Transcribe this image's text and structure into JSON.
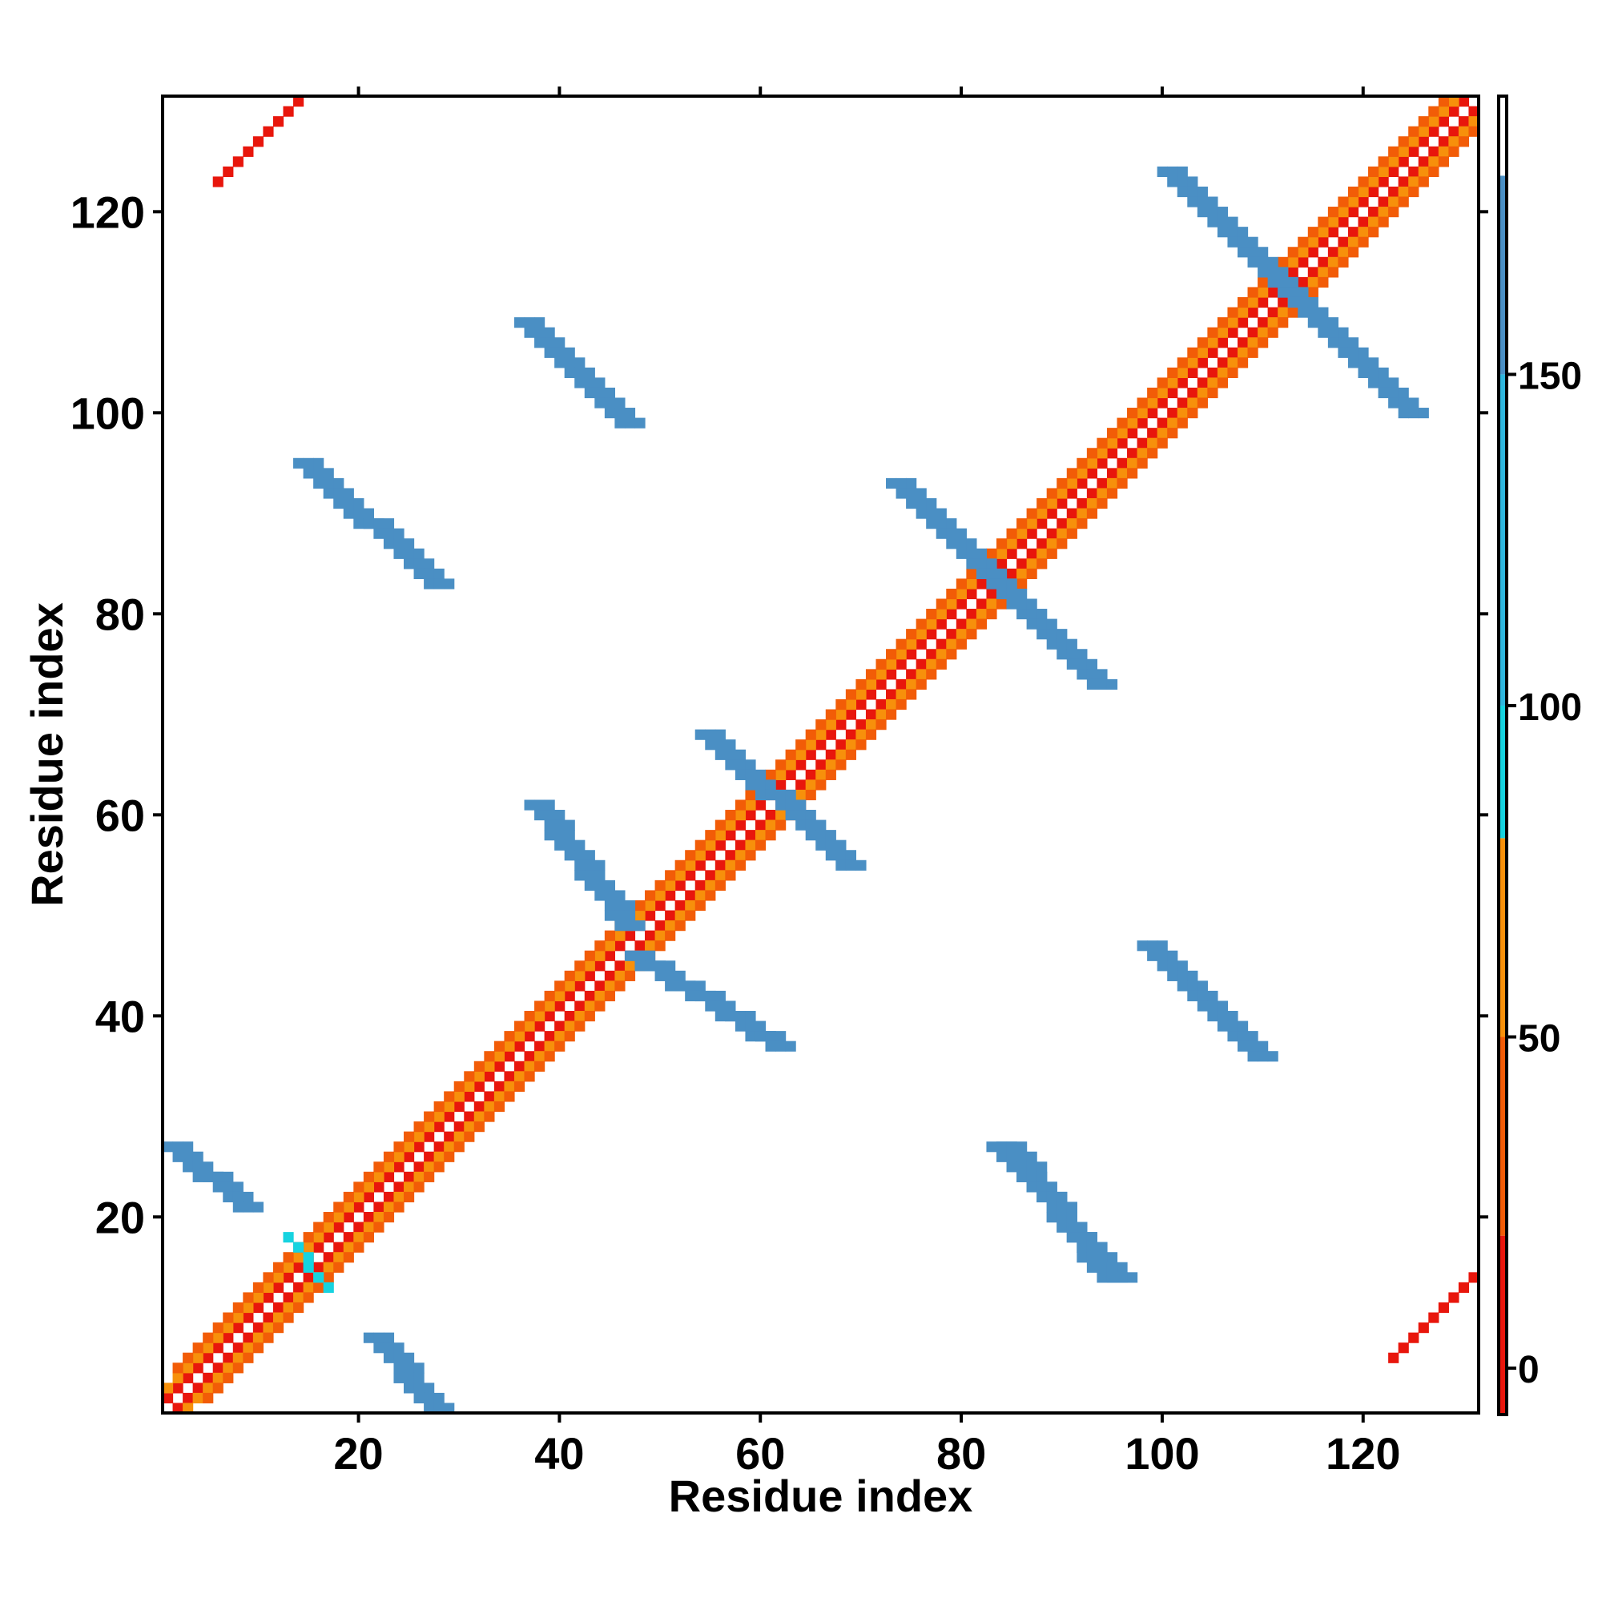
{
  "chart_data": {
    "type": "heatmap",
    "title": "",
    "xlabel": "Residue index",
    "ylabel": "Residue index",
    "xlim": [
      1,
      131
    ],
    "ylim": [
      1,
      131
    ],
    "x_ticks": [
      20,
      40,
      60,
      80,
      100,
      120
    ],
    "y_ticks": [
      20,
      40,
      60,
      80,
      100,
      120
    ],
    "grid": false,
    "colorbar": {
      "ticks": [
        0,
        50,
        100,
        150
      ],
      "range": [
        -7,
        192
      ],
      "bands": [
        {
          "from": -7,
          "to": 20,
          "color": "#e8160c"
        },
        {
          "from": 20,
          "to": 50,
          "color": "#f25c07"
        },
        {
          "from": 50,
          "to": 80,
          "color": "#f7900b"
        },
        {
          "from": 80,
          "to": 100,
          "color": "#16d3e0"
        },
        {
          "from": 100,
          "to": 150,
          "color": "#2fb6dd"
        },
        {
          "from": 150,
          "to": 180,
          "color": "#4a8fc4"
        },
        {
          "from": 180,
          "to": 192,
          "color": "#ffffff"
        }
      ]
    },
    "colors": {
      "red": "#e8160c",
      "red_orange": "#f25c07",
      "orange": "#f7900b",
      "cyan": "#16d3e0",
      "light_blue": "#2fb6dd",
      "steel_blue": "#4a8fc4"
    },
    "contact_segments": [
      {
        "name": "main diagonal (i,i+1)",
        "color": "red",
        "x": [
          1,
          130
        ],
        "y": [
          2,
          131
        ]
      },
      {
        "name": "main diagonal (i+1,i)",
        "color": "red",
        "x": [
          2,
          131
        ],
        "y": [
          1,
          130
        ]
      },
      {
        "name": "main diagonal (i,i+2)",
        "color": "orange",
        "x": [
          1,
          129
        ],
        "y": [
          3,
          131
        ]
      },
      {
        "name": "main diagonal (i+2,i)",
        "color": "orange",
        "x": [
          3,
          131
        ],
        "y": [
          1,
          129
        ]
      },
      {
        "name": "diagonal band i+3",
        "color": "red_orange",
        "x": [
          2,
          128
        ],
        "y": [
          5,
          131
        ]
      },
      {
        "name": "diagonal band i-3",
        "color": "red_orange",
        "x": [
          5,
          131
        ],
        "y": [
          2,
          128
        ]
      },
      {
        "name": "anti 1-27 upper-left",
        "color": "steel_blue",
        "x": [
          1,
          8
        ],
        "y": [
          27,
          21
        ]
      },
      {
        "name": "anti 1-27 lower",
        "color": "steel_blue",
        "x": [
          21,
          27
        ],
        "y": [
          8,
          1
        ]
      },
      {
        "name": "anti 14-23",
        "color": "cyan",
        "x": [
          13,
          17
        ],
        "y": [
          18,
          13
        ]
      },
      {
        "name": "anti 95-84 a",
        "color": "steel_blue",
        "x": [
          14,
          27
        ],
        "y": [
          95,
          83
        ]
      },
      {
        "name": "anti 95-84 b",
        "color": "steel_blue",
        "x": [
          83,
          95
        ],
        "y": [
          27,
          14
        ]
      },
      {
        "name": "anti 108-100 a",
        "color": "steel_blue",
        "x": [
          36,
          46
        ],
        "y": [
          109,
          99
        ]
      },
      {
        "name": "anti 108-100 b",
        "color": "steel_blue",
        "x": [
          84,
          94
        ],
        "y": [
          27,
          14
        ]
      },
      {
        "name": "anti 61-47 a",
        "color": "steel_blue",
        "x": [
          37,
          46
        ],
        "y": [
          61,
          49
        ]
      },
      {
        "name": "anti 61-47 b",
        "color": "steel_blue",
        "x": [
          47,
          61
        ],
        "y": [
          46,
          37
        ]
      },
      {
        "name": "anti 68-56",
        "color": "steel_blue",
        "x": [
          54,
          68
        ],
        "y": [
          68,
          55
        ]
      },
      {
        "name": "anti 93-73 a",
        "color": "steel_blue",
        "x": [
          73,
          83
        ],
        "y": [
          93,
          83
        ]
      },
      {
        "name": "anti 93-73 b",
        "color": "steel_blue",
        "x": [
          83,
          93
        ],
        "y": [
          83,
          73
        ]
      },
      {
        "name": "anti 47-37 c",
        "color": "steel_blue",
        "x": [
          98,
          109
        ],
        "y": [
          47,
          36
        ]
      },
      {
        "name": "anti 124-100 a",
        "color": "steel_blue",
        "x": [
          100,
          112
        ],
        "y": [
          124,
          112
        ]
      },
      {
        "name": "anti 124-100 b",
        "color": "steel_blue",
        "x": [
          112,
          124
        ],
        "y": [
          112,
          100
        ]
      },
      {
        "name": "corner top-left",
        "color": "red",
        "x": [
          6,
          14
        ],
        "y": [
          123,
          131
        ]
      },
      {
        "name": "corner bottom-right",
        "color": "red",
        "x": [
          123,
          131
        ],
        "y": [
          6,
          14
        ]
      }
    ]
  }
}
